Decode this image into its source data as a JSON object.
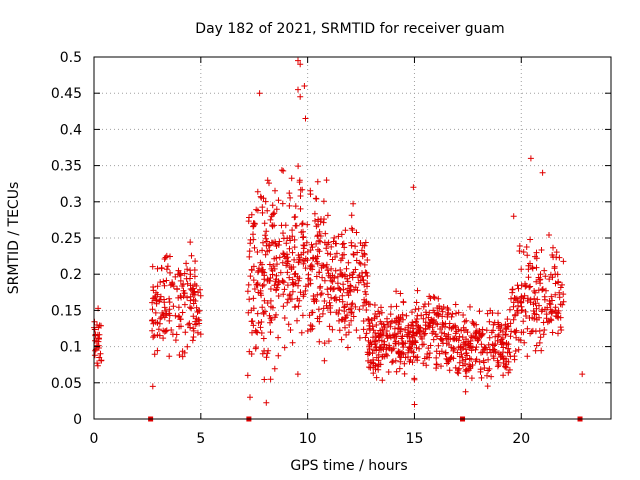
{
  "chart_data": {
    "type": "scatter",
    "title": "Day 182 of 2021, SRMTID for receiver guam",
    "xlabel": "GPS time / hours",
    "ylabel": "SRMTID / TECUs",
    "xlim": [
      0,
      24.2
    ],
    "ylim": [
      0,
      0.5
    ],
    "xticks": [
      0,
      5,
      10,
      15,
      20
    ],
    "xtick_labels": [
      "0",
      "5",
      "10",
      "15",
      "20"
    ],
    "yticks": [
      0,
      0.05,
      0.1,
      0.15,
      0.2,
      0.25,
      0.3,
      0.35,
      0.4,
      0.45,
      0.5
    ],
    "ytick_labels": [
      "0",
      "0.05",
      "0.1",
      "0.15",
      "0.2",
      "0.25",
      "0.3",
      "0.35",
      "0.4",
      "0.45",
      "0.5"
    ],
    "grid": true,
    "marker": "+",
    "color": "#e00000",
    "series": [
      {
        "name": "SRMTID",
        "clusters": [
          {
            "x_range": [
              0.0,
              0.35
            ],
            "center": 0.105,
            "spread": 0.025,
            "count": 30
          },
          {
            "x_range": [
              2.7,
              5.0
            ],
            "center": 0.155,
            "spread": 0.045,
            "count": 170
          },
          {
            "x_range": [
              7.2,
              8.8
            ],
            "center": 0.2,
            "spread": 0.085,
            "count": 170
          },
          {
            "x_range": [
              8.8,
              11.0
            ],
            "center": 0.21,
            "spread": 0.075,
            "count": 220
          },
          {
            "x_range": [
              11.0,
              12.8
            ],
            "center": 0.185,
            "spread": 0.055,
            "count": 160
          },
          {
            "x_range": [
              12.8,
              15.0
            ],
            "center": 0.11,
            "spread": 0.03,
            "count": 220
          },
          {
            "x_range": [
              15.0,
              17.0
            ],
            "center": 0.12,
            "spread": 0.035,
            "count": 160
          },
          {
            "x_range": [
              17.0,
              19.5
            ],
            "center": 0.1,
            "spread": 0.03,
            "count": 200
          },
          {
            "x_range": [
              19.5,
              22.0
            ],
            "center": 0.17,
            "spread": 0.05,
            "count": 180
          }
        ],
        "points": [
          [
            9.55,
            0.495
          ],
          [
            9.65,
            0.49
          ],
          [
            9.85,
            0.46
          ],
          [
            9.55,
            0.455
          ],
          [
            9.65,
            0.445
          ],
          [
            9.9,
            0.415
          ],
          [
            7.75,
            0.45
          ],
          [
            20.45,
            0.36
          ],
          [
            21.0,
            0.34
          ],
          [
            7.3,
            0.03
          ],
          [
            22.85,
            0.062
          ],
          [
            14.95,
            0.32
          ],
          [
            15.0,
            0.02
          ],
          [
            2.75,
            0.045
          ]
        ]
      }
    ],
    "zero_markers": [
      2.65,
      7.25,
      17.25,
      22.75
    ]
  }
}
